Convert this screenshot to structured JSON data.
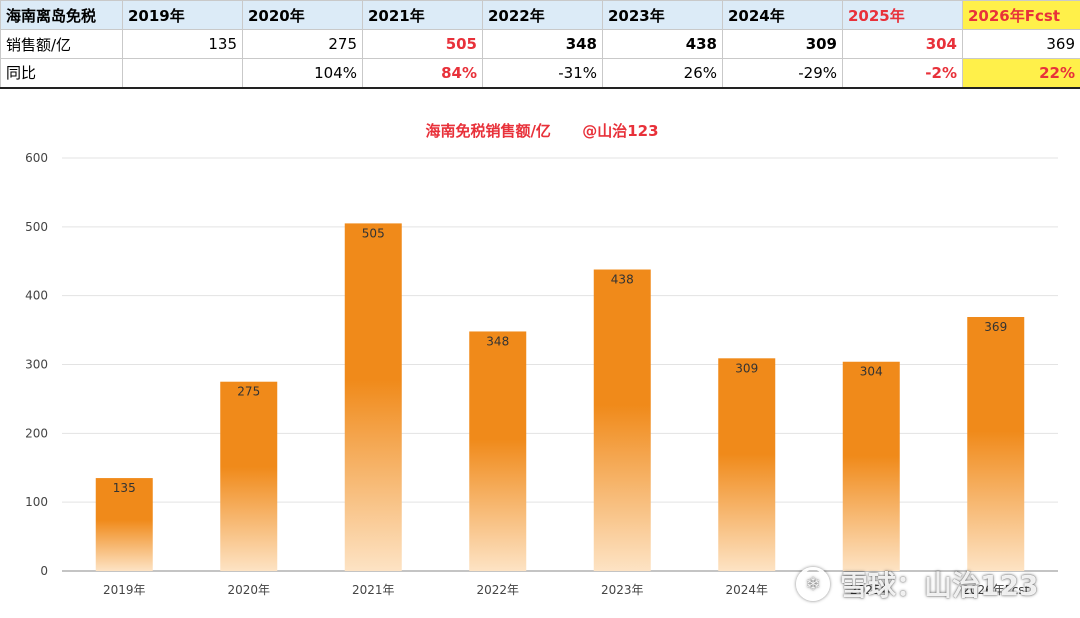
{
  "table": {
    "header": [
      "海南离岛免税",
      "2019年",
      "2020年",
      "2021年",
      "2022年",
      "2023年",
      "2024年",
      "2025年",
      "2026年Fcst"
    ],
    "row1": [
      "销售额/亿",
      "135",
      "275",
      "505",
      "348",
      "438",
      "309",
      "304",
      "369"
    ],
    "row2": [
      "同比",
      "",
      "104%",
      "84%",
      "-31%",
      "26%",
      "-29%",
      "-2%",
      "22%"
    ]
  },
  "chart_data": {
    "type": "bar",
    "title": "海南免税销售额/亿      @山治123",
    "categories": [
      "2019年",
      "2020年",
      "2021年",
      "2022年",
      "2023年",
      "2024年",
      "2025年",
      "2026年Fcst"
    ],
    "values": [
      135,
      275,
      505,
      348,
      438,
      309,
      304,
      369
    ],
    "ylim": [
      0,
      600
    ],
    "yticks": [
      0,
      100,
      200,
      300,
      400,
      500,
      600
    ],
    "grid": true,
    "colors": {
      "bar_top": "#f08a1a",
      "bar_bottom": "#fde3c4",
      "title": "#e8313a"
    }
  },
  "watermark": {
    "text": "雪球：山治123",
    "logo_icon": "snowball-logo-icon"
  }
}
